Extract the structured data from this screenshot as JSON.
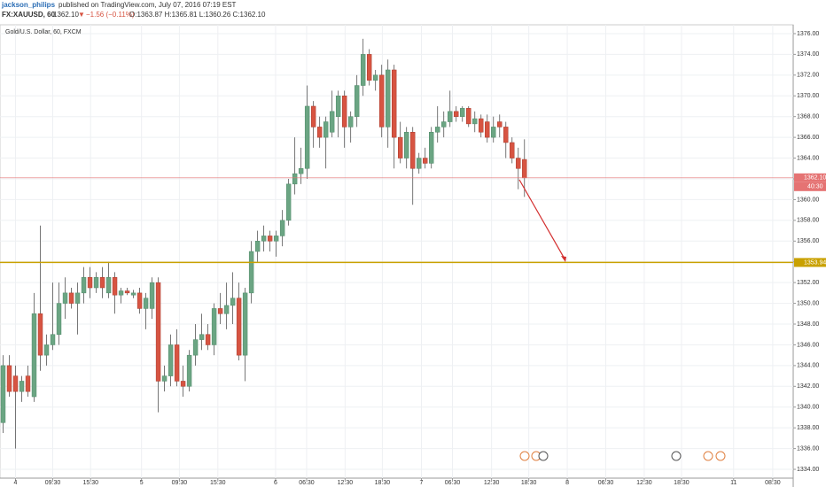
{
  "header": {
    "author": "jackson_philips",
    "published": "published on TradingView.com, July 07, 2016 07:19 EST",
    "symbol": "FX:XAUUSD, 60",
    "last": "1362.10",
    "direction": "▼",
    "change": "−1.56 (−0.11%)",
    "ohlc": "O:1363.87 H:1365.81 L:1360.26 C:1362.10"
  },
  "chart_data": {
    "type": "candlestick",
    "title": "Gold/U.S. Dollar, 60, FXCM",
    "up_color": "#6ba583",
    "down_color": "#d75442",
    "wick_color": "#555555",
    "grid": true,
    "open": [
      1338.5,
      1344,
      1343,
      1341.5,
      1343,
      1341,
      1349,
      1345,
      1346,
      1347,
      1350,
      1351,
      1350,
      1351,
      1352.5,
      1351.5,
      1352.5,
      1351,
      1352.5,
      1350.8,
      1351.2,
      1350.8,
      1351,
      1349.5,
      1349.5,
      1352,
      1342.5,
      1343,
      1346,
      1342.5,
      1342,
      1345,
      1346.5,
      1347,
      1346,
      1349.5,
      1349,
      1349.8,
      1350.5,
      1345,
      1351,
      1355,
      1356,
      1356.5,
      1356,
      1356.5,
      1358,
      1361.5,
      1362.5,
      1363,
      1369,
      1367,
      1366,
      1366.5,
      1368,
      1370,
      1367,
      1368,
      1371,
      1374,
      1371.5,
      1372,
      1367,
      1372.5,
      1366,
      1364,
      1366.5,
      1363,
      1364,
      1363.5,
      1366.5,
      1367,
      1367.5,
      1368.5,
      1368,
      1368.8,
      1367.3,
      1367.8,
      1367.5,
      1366,
      1367.5,
      1367,
      1365.5,
      1364,
      1363.87
    ],
    "high": [
      1345,
      1345,
      1344,
      1343,
      1344,
      1351,
      1357.5,
      1347,
      1352,
      1352,
      1352.5,
      1351.5,
      1352,
      1353.5,
      1353.5,
      1353,
      1353.5,
      1354,
      1353,
      1351.5,
      1351.5,
      1351.3,
      1351.5,
      1351,
      1352.5,
      1352.5,
      1344,
      1347,
      1347.5,
      1344,
      1345.5,
      1348,
      1349,
      1348,
      1350,
      1351,
      1352,
      1353,
      1352,
      1351.5,
      1356,
      1357,
      1357.5,
      1357,
      1357,
      1359,
      1362,
      1366,
      1365,
      1371,
      1369.5,
      1368,
      1368,
      1370.5,
      1370.5,
      1370.5,
      1368.5,
      1372,
      1375.5,
      1374.5,
      1372.5,
      1373,
      1373.5,
      1373,
      1367.5,
      1367,
      1367,
      1364.5,
      1365,
      1367,
      1369,
      1368.5,
      1370.5,
      1369,
      1369,
      1369,
      1368.5,
      1368.2,
      1368.2,
      1368,
      1368.2,
      1367.5,
      1366,
      1365,
      1365.81
    ],
    "low": [
      1337.5,
      1341,
      1336,
      1340.5,
      1341,
      1340.5,
      1343.5,
      1344,
      1345.5,
      1346,
      1348.5,
      1349.5,
      1347,
      1350,
      1350.5,
      1351,
      1350.5,
      1350.5,
      1349,
      1350,
      1350.8,
      1350.5,
      1349,
      1347.5,
      1348.5,
      1339.5,
      1341.5,
      1342,
      1342,
      1341,
      1341.5,
      1344,
      1345.5,
      1345.5,
      1345,
      1348,
      1347.5,
      1348,
      1344.5,
      1342.5,
      1350,
      1354,
      1355,
      1355,
      1354.5,
      1355.5,
      1357.5,
      1360.5,
      1361.5,
      1362,
      1365,
      1365,
      1363,
      1366,
      1366,
      1365,
      1365.5,
      1367,
      1370,
      1371,
      1370.5,
      1366,
      1365,
      1363,
      1363.5,
      1363,
      1359.5,
      1362.5,
      1363,
      1363,
      1365.5,
      1366,
      1367,
      1367.5,
      1367.5,
      1367,
      1366.5,
      1366,
      1365.5,
      1365.5,
      1366,
      1364,
      1363.5,
      1361,
      1360.26
    ],
    "close": [
      1344,
      1341.5,
      1341.5,
      1342.5,
      1341.5,
      1349,
      1345,
      1346,
      1347,
      1350,
      1351,
      1350,
      1351,
      1352.5,
      1351.5,
      1352.5,
      1351.5,
      1352.5,
      1350.8,
      1351.2,
      1351,
      1351,
      1349.5,
      1350.5,
      1352,
      1342.5,
      1343,
      1346,
      1342.5,
      1342,
      1345,
      1346.5,
      1347,
      1346,
      1349.5,
      1349,
      1349.8,
      1350.5,
      1345,
      1351,
      1355,
      1356,
      1356.5,
      1356,
      1356.5,
      1358,
      1361.5,
      1362.5,
      1363,
      1369,
      1367,
      1366,
      1367.5,
      1368.5,
      1370,
      1367,
      1368,
      1371,
      1374,
      1371.5,
      1372,
      1367,
      1372.5,
      1366,
      1364,
      1366.5,
      1363,
      1364,
      1363.5,
      1366.5,
      1367,
      1367.5,
      1368.5,
      1368,
      1368.8,
      1367.3,
      1367.8,
      1366.5,
      1366,
      1367,
      1367,
      1365.5,
      1364,
      1363,
      1362.1
    ],
    "xlim": [
      -0.5,
      127.3
    ],
    "xticks": [
      {
        "value": 2,
        "label": "4"
      },
      {
        "value": 8,
        "label": "09:30"
      },
      {
        "value": 14.1,
        "label": "15:30"
      },
      {
        "value": 22.3,
        "label": "5"
      },
      {
        "value": 28.4,
        "label": "09:30"
      },
      {
        "value": 34.6,
        "label": "15:30"
      },
      {
        "value": 43.9,
        "label": "6"
      },
      {
        "value": 48.9,
        "label": "06:30"
      },
      {
        "value": 55.1,
        "label": "12:30"
      },
      {
        "value": 61.1,
        "label": "18:30"
      },
      {
        "value": 67.4,
        "label": "7"
      },
      {
        "value": 72.4,
        "label": "06:30"
      },
      {
        "value": 78.7,
        "label": "12:30"
      },
      {
        "value": 84.7,
        "label": "18:30"
      },
      {
        "value": 90.9,
        "label": "8"
      },
      {
        "value": 97.1,
        "label": "06:30"
      },
      {
        "value": 103.3,
        "label": "12:30"
      },
      {
        "value": 109.3,
        "label": "18:30"
      },
      {
        "value": 117.7,
        "label": "11"
      },
      {
        "value": 124,
        "label": "08:30"
      }
    ],
    "ylim": [
      1333.15,
      1376.85
    ],
    "yticks": [
      {
        "value": 1334,
        "label": "1334.00"
      },
      {
        "value": 1336,
        "label": "1336.00"
      },
      {
        "value": 1338,
        "label": "1338.00"
      },
      {
        "value": 1340,
        "label": "1340.00"
      },
      {
        "value": 1342,
        "label": "1342.00"
      },
      {
        "value": 1344,
        "label": "1344.00"
      },
      {
        "value": 1346,
        "label": "1346.00"
      },
      {
        "value": 1348,
        "label": "1348.00"
      },
      {
        "value": 1350,
        "label": "1350.00"
      },
      {
        "value": 1352,
        "label": "1352.00"
      },
      {
        "value": 1354,
        "label": "1354.00"
      },
      {
        "value": 1356,
        "label": "1356.00"
      },
      {
        "value": 1358,
        "label": "1358.00"
      },
      {
        "value": 1360,
        "label": "1360.00"
      },
      {
        "value": 1362,
        "label": "1362.00"
      },
      {
        "value": 1364,
        "label": "1364.00"
      },
      {
        "value": 1366,
        "label": "1366.00"
      },
      {
        "value": 1368,
        "label": "1368.00"
      },
      {
        "value": 1370,
        "label": "1370.00"
      },
      {
        "value": 1372,
        "label": "1372.00"
      },
      {
        "value": 1374,
        "label": "1374.00"
      },
      {
        "value": 1376,
        "label": "1376.00"
      }
    ],
    "price_lines": [
      {
        "value": 1362.1,
        "label": "1362.10",
        "color": "#e57373"
      },
      {
        "value": 1353.94,
        "label": "1353.94",
        "color": "#c9a100"
      }
    ],
    "countdown": "40:30"
  }
}
